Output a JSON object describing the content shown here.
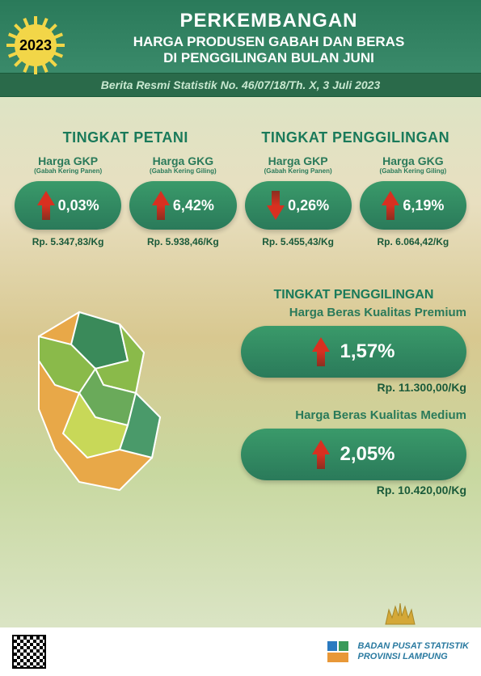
{
  "year": "2023",
  "header": {
    "title_main": "PERKEMBANGAN",
    "title_sub1": "HARGA PRODUSEN GABAH DAN BERAS",
    "title_sub2": "DI PENGGILINGAN BULAN JUNI",
    "subtitle": "Berita Resmi Statistik No. 46/07/18/Th. X, 3 Juli 2023",
    "band_color": "#2a7a5a",
    "subtitle_bg": "#2a6a4a"
  },
  "sun": {
    "color": "#f2d648",
    "ray_count": 16
  },
  "row1": {
    "groups": [
      {
        "title": "TINGKAT PETANI",
        "cards": [
          {
            "label": "Harga GKP",
            "sublabel": "(Gabah Kering Panen)",
            "direction": "up",
            "pct": "0,03%",
            "price": "Rp. 5.347,83/Kg",
            "arrow_color": "#d83020"
          },
          {
            "label": "Harga GKG",
            "sublabel": "(Gabah Kering Giling)",
            "direction": "up",
            "pct": "6,42%",
            "price": "Rp. 5.938,46/Kg",
            "arrow_color": "#d83020"
          }
        ]
      },
      {
        "title": "TINGKAT PENGGILINGAN",
        "cards": [
          {
            "label": "Harga GKP",
            "sublabel": "(Gabah Kering Panen)",
            "direction": "down",
            "pct": "0,26%",
            "price": "Rp. 5.455,43/Kg",
            "arrow_color": "#d83020"
          },
          {
            "label": "Harga GKG",
            "sublabel": "(Gabah Kering Giling)",
            "direction": "up",
            "pct": "6,19%",
            "price": "Rp. 6.064,42/Kg",
            "arrow_color": "#d83020"
          }
        ]
      }
    ]
  },
  "row2": {
    "title": "TINGKAT PENGGILINGAN",
    "items": [
      {
        "label": "Harga Beras Kualitas Premium",
        "direction": "up",
        "pct": "1,57%",
        "price": "Rp. 11.300,00/Kg",
        "arrow_color": "#d83020"
      },
      {
        "label": "Harga Beras Kualitas Medium",
        "direction": "up",
        "pct": "2,05%",
        "price": "Rp. 10.420,00/Kg",
        "arrow_color": "#d83020"
      }
    ]
  },
  "map": {
    "region_colors": [
      "#3a8a5a",
      "#8aba4a",
      "#e8a848",
      "#6aaa5a",
      "#c8d858",
      "#4a9a6a"
    ]
  },
  "footer": {
    "org_line1": "BADAN PUSAT STATISTIK",
    "org_line2": "PROVINSI LAMPUNG",
    "logo_colors": {
      "blue": "#2a7ac0",
      "green": "#3a9a5a",
      "orange": "#e89838"
    }
  },
  "colors": {
    "primary_green": "#2a7a5a",
    "text_green": "#1a7a5a",
    "dark_green": "#1a5a3a",
    "pill_gradient_top": "#3a9a6a",
    "pill_gradient_bottom": "#2a7a5a"
  }
}
